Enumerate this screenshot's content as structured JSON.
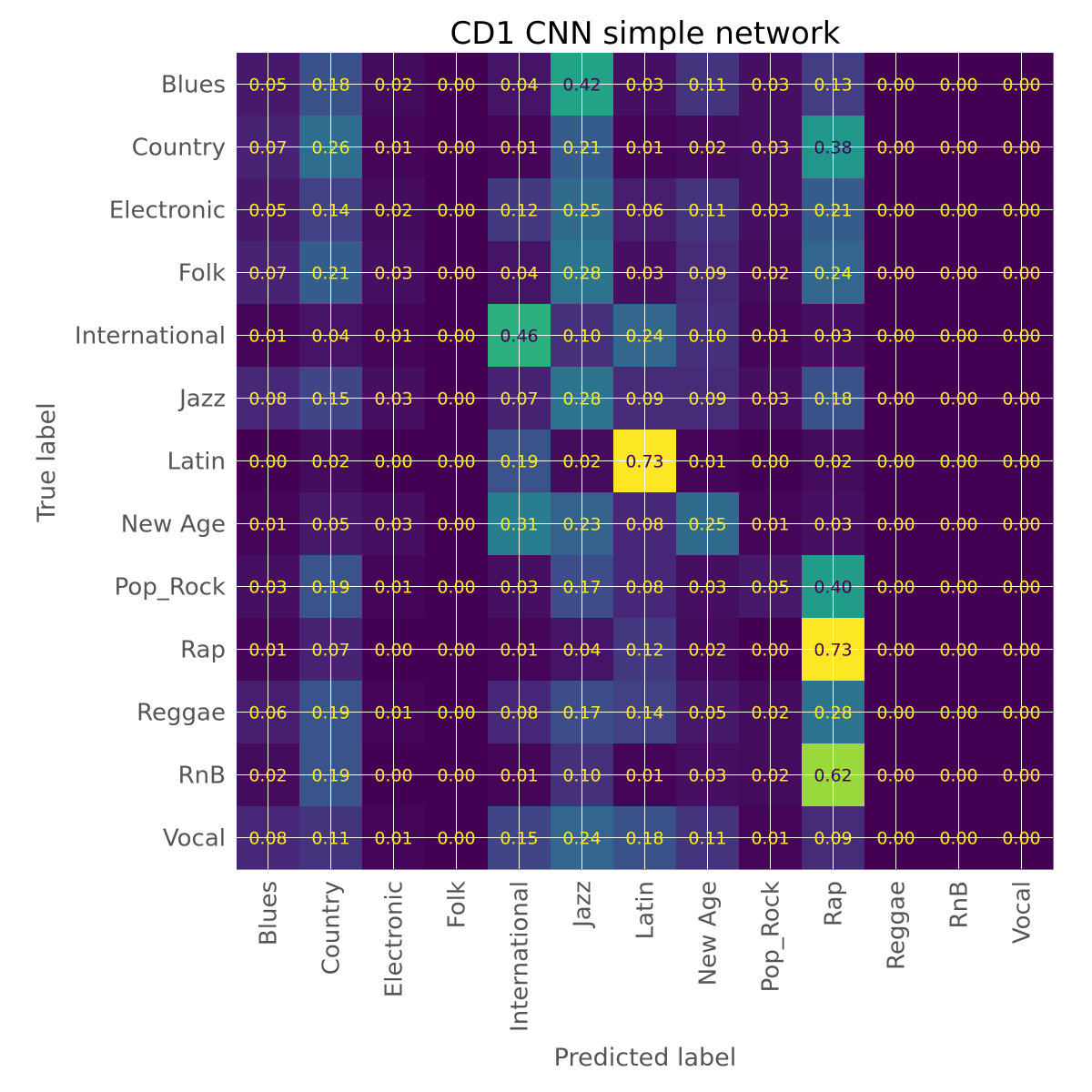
{
  "chart_data": {
    "type": "heatmap",
    "title": "CD1 CNN simple network",
    "xlabel": "Predicted label",
    "ylabel": "True label",
    "colormap": "viridis",
    "value_range": [
      0,
      0.73
    ],
    "grid": true,
    "x_categories": [
      "Blues",
      "Country",
      "Electronic",
      "Folk",
      "International",
      "Jazz",
      "Latin",
      "New Age",
      "Pop_Rock",
      "Rap",
      "Reggae",
      "RnB",
      "Vocal"
    ],
    "y_categories": [
      "Blues",
      "Country",
      "Electronic",
      "Folk",
      "International",
      "Jazz",
      "Latin",
      "New Age",
      "Pop_Rock",
      "Rap",
      "Reggae",
      "RnB",
      "Vocal"
    ],
    "values": [
      [
        "0.05",
        "0.18",
        "0.02",
        "0.00",
        "0.04",
        "0.42",
        "0.03",
        "0.11",
        "0.03",
        "0.13",
        "0.00",
        "0.00",
        "0.00"
      ],
      [
        "0.07",
        "0.26",
        "0.01",
        "0.00",
        "0.01",
        "0.21",
        "0.01",
        "0.02",
        "0.03",
        "0.38",
        "0.00",
        "0.00",
        "0.00"
      ],
      [
        "0.05",
        "0.14",
        "0.02",
        "0.00",
        "0.12",
        "0.25",
        "0.06",
        "0.11",
        "0.03",
        "0.21",
        "0.00",
        "0.00",
        "0.00"
      ],
      [
        "0.07",
        "0.21",
        "0.03",
        "0.00",
        "0.04",
        "0.28",
        "0.03",
        "0.09",
        "0.02",
        "0.24",
        "0.00",
        "0.00",
        "0.00"
      ],
      [
        "0.01",
        "0.04",
        "0.01",
        "0.00",
        "0.46",
        "0.10",
        "0.24",
        "0.10",
        "0.01",
        "0.03",
        "0.00",
        "0.00",
        "0.00"
      ],
      [
        "0.08",
        "0.15",
        "0.03",
        "0.00",
        "0.07",
        "0.28",
        "0.09",
        "0.09",
        "0.03",
        "0.18",
        "0.00",
        "0.00",
        "0.00"
      ],
      [
        "0.00",
        "0.02",
        "0.00",
        "0.00",
        "0.19",
        "0.02",
        "0.73",
        "0.01",
        "0.00",
        "0.02",
        "0.00",
        "0.00",
        "0.00"
      ],
      [
        "0.01",
        "0.05",
        "0.03",
        "0.00",
        "0.31",
        "0.23",
        "0.08",
        "0.25",
        "0.01",
        "0.03",
        "0.00",
        "0.00",
        "0.00"
      ],
      [
        "0.03",
        "0.19",
        "0.01",
        "0.00",
        "0.03",
        "0.17",
        "0.08",
        "0.03",
        "0.05",
        "0.40",
        "0.00",
        "0.00",
        "0.00"
      ],
      [
        "0.01",
        "0.07",
        "0.00",
        "0.00",
        "0.01",
        "0.04",
        "0.12",
        "0.02",
        "0.00",
        "0.73",
        "0.00",
        "0.00",
        "0.00"
      ],
      [
        "0.06",
        "0.19",
        "0.01",
        "0.00",
        "0.08",
        "0.17",
        "0.14",
        "0.05",
        "0.02",
        "0.28",
        "0.00",
        "0.00",
        "0.00"
      ],
      [
        "0.02",
        "0.19",
        "0.00",
        "0.00",
        "0.01",
        "0.10",
        "0.01",
        "0.03",
        "0.02",
        "0.62",
        "0.00",
        "0.00",
        "0.00"
      ],
      [
        "0.08",
        "0.11",
        "0.01",
        "0.00",
        "0.15",
        "0.24",
        "0.18",
        "0.11",
        "0.01",
        "0.09",
        "0.00",
        "0.00",
        "0.00"
      ]
    ],
    "text_colors": {
      "on_dark": "#fde725",
      "on_light": "#440154"
    }
  }
}
